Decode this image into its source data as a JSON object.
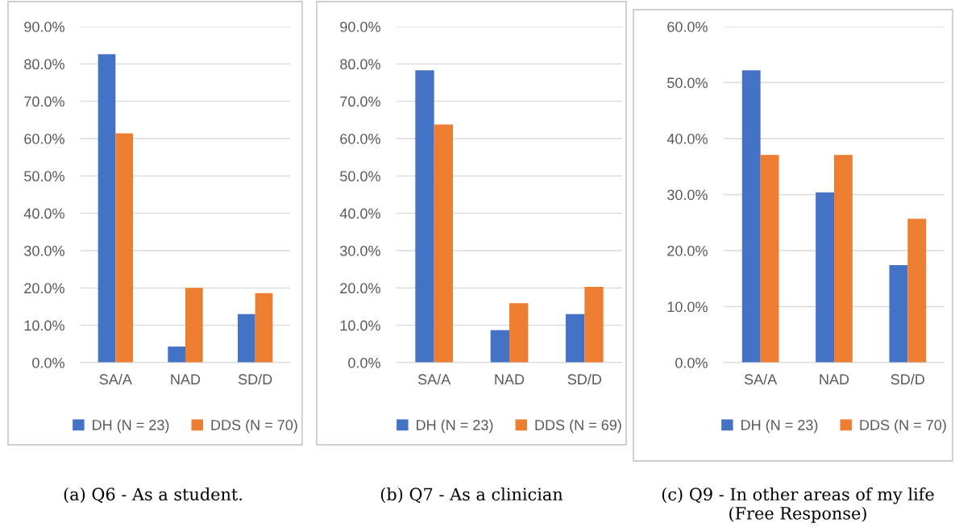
{
  "chart_data": [
    {
      "type": "bar",
      "categories": [
        "SA/A",
        "NAD",
        "SD/D"
      ],
      "series": [
        {
          "name": "DH (N = 23)",
          "color": "#4472c4",
          "values": [
            82.6,
            4.3,
            13.0
          ]
        },
        {
          "name": "DDS (N = 70)",
          "color": "#ed7d31",
          "values": [
            61.4,
            20.0,
            18.6
          ]
        }
      ],
      "ylim": [
        0,
        90
      ],
      "yticks": [
        {
          "value": 0,
          "label": "0.0%"
        },
        {
          "value": 10,
          "label": "10.0%"
        },
        {
          "value": 20,
          "label": "20.0%"
        },
        {
          "value": 30,
          "label": "30.0%"
        },
        {
          "value": 40,
          "label": "40.0%"
        },
        {
          "value": 50,
          "label": "50.0%"
        },
        {
          "value": 60,
          "label": "60.0%"
        },
        {
          "value": 70,
          "label": "70.0%"
        },
        {
          "value": 80,
          "label": "80.0%"
        },
        {
          "value": 90,
          "label": "90.0%"
        }
      ],
      "grid": "y",
      "legend": "bottom",
      "annotations": [
        "(a) Q6 - As a student."
      ]
    },
    {
      "type": "bar",
      "categories": [
        "SA/A",
        "NAD",
        "SD/D"
      ],
      "series": [
        {
          "name": "DH (N = 23)",
          "color": "#4472c4",
          "values": [
            78.3,
            8.7,
            13.0
          ]
        },
        {
          "name": "DDS (N = 69)",
          "color": "#ed7d31",
          "values": [
            63.8,
            15.9,
            20.3
          ]
        }
      ],
      "ylim": [
        0,
        90
      ],
      "yticks": [
        {
          "value": 0,
          "label": "0.0%"
        },
        {
          "value": 10,
          "label": "10.0%"
        },
        {
          "value": 20,
          "label": "20.0%"
        },
        {
          "value": 30,
          "label": "30.0%"
        },
        {
          "value": 40,
          "label": "40.0%"
        },
        {
          "value": 50,
          "label": "50.0%"
        },
        {
          "value": 60,
          "label": "60.0%"
        },
        {
          "value": 70,
          "label": "70.0%"
        },
        {
          "value": 80,
          "label": "80.0%"
        },
        {
          "value": 90,
          "label": "90.0%"
        }
      ],
      "grid": "y",
      "legend": "bottom",
      "annotations": [
        "(b) Q7 - As a clinician"
      ]
    },
    {
      "type": "bar",
      "categories": [
        "SA/A",
        "NAD",
        "SD/D"
      ],
      "series": [
        {
          "name": "DH (N = 23)",
          "color": "#4472c4",
          "values": [
            52.2,
            30.4,
            17.4
          ]
        },
        {
          "name": "DDS (N = 70)",
          "color": "#ed7d31",
          "values": [
            37.1,
            37.1,
            25.7
          ]
        }
      ],
      "ylim": [
        0,
        60
      ],
      "yticks": [
        {
          "value": 0,
          "label": "0.0%"
        },
        {
          "value": 10,
          "label": "10.0%"
        },
        {
          "value": 20,
          "label": "20.0%"
        },
        {
          "value": 30,
          "label": "30.0%"
        },
        {
          "value": 40,
          "label": "40.0%"
        },
        {
          "value": 50,
          "label": "50.0%"
        },
        {
          "value": 60,
          "label": "60.0%"
        }
      ],
      "grid": "y",
      "legend": "bottom",
      "annotations": [
        "(c) Q9 - In other areas of my life (Free Response)"
      ]
    }
  ]
}
